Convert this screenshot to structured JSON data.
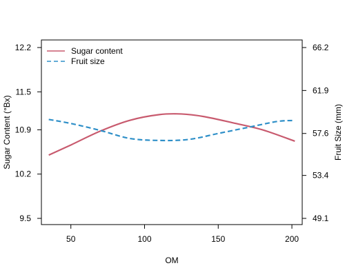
{
  "chart_data": {
    "type": "line",
    "xlabel": "OM",
    "x_ticks": [
      50,
      100,
      150,
      200
    ],
    "xlim": [
      30,
      207
    ],
    "left_axis": {
      "label": "Sugar Content (°Bx)",
      "ticks": [
        "9.5",
        "10.2",
        "10.9",
        "11.5",
        "12.2"
      ],
      "tick_values": [
        9.5,
        10.2,
        10.9,
        11.5,
        12.2
      ],
      "ylim": [
        9.5,
        12.2
      ]
    },
    "right_axis": {
      "label": "Fruit Size (mm)",
      "ticks": [
        "49.1",
        "53.4",
        "57.6",
        "61.9",
        "66.2"
      ],
      "tick_values": [
        49.1,
        53.4,
        57.6,
        61.9,
        66.2
      ],
      "ylim": [
        49.1,
        66.2
      ]
    },
    "legend_position": "top-left",
    "series": [
      {
        "name": "Sugar content",
        "axis": "left",
        "color": "#c85a6e",
        "style": "solid",
        "x": [
          35,
          50,
          70,
          90,
          110,
          125,
          140,
          160,
          180,
          202
        ],
        "y": [
          10.5,
          10.66,
          10.88,
          11.05,
          11.14,
          11.15,
          11.11,
          11.01,
          10.9,
          10.72
        ]
      },
      {
        "name": "Fruit size",
        "axis": "right",
        "color": "#2e8fc8",
        "style": "dashed",
        "x": [
          35,
          50,
          70,
          90,
          110,
          130,
          150,
          170,
          190,
          202
        ],
        "y": [
          59.0,
          58.6,
          57.9,
          57.1,
          56.9,
          57.0,
          57.6,
          58.2,
          58.8,
          58.9
        ]
      }
    ]
  }
}
